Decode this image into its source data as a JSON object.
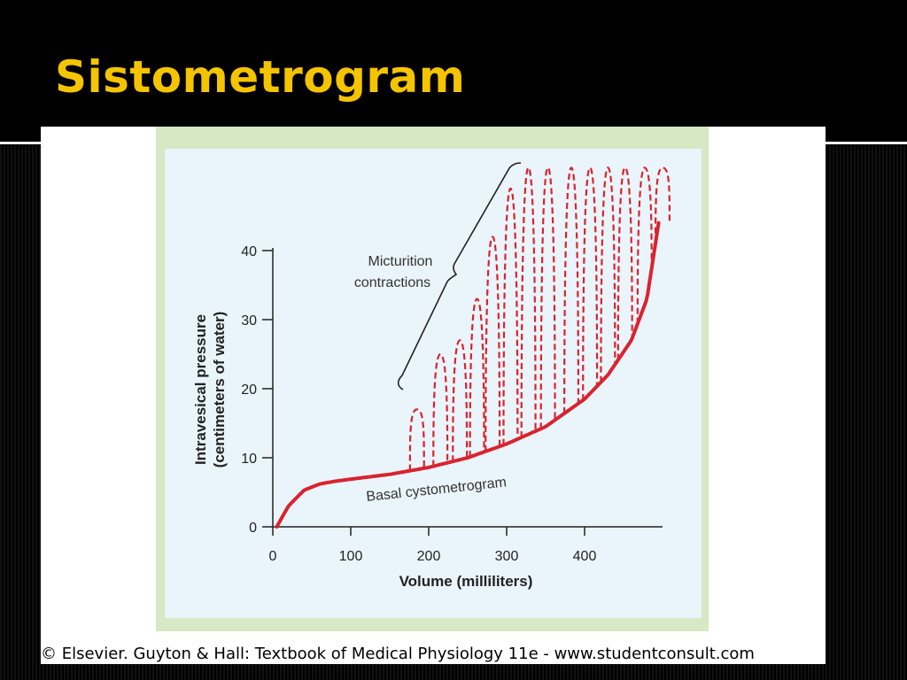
{
  "slide": {
    "title": "Sistometrogram",
    "credit": "© Elsevier. Guyton & Hall: Textbook of Medical Physiology 11e - www.studentconsult.com"
  },
  "colors": {
    "title": "#f5c400",
    "curve": "#d9232e",
    "figure_border": "#d6e8c4",
    "figure_bg": "#eaf4fb"
  },
  "chart_data": {
    "type": "line",
    "xlabel": "Volume (milliliters)",
    "ylabel_line1": "Intravesical pressure",
    "ylabel_line2": "(centimeters of water)",
    "xlim": [
      0,
      500
    ],
    "ylim": [
      0,
      40
    ],
    "x_ticks": [
      0,
      100,
      200,
      300,
      400
    ],
    "y_ticks": [
      0,
      10,
      20,
      30,
      40
    ],
    "grid": false,
    "series": [
      {
        "name": "Basal cystometrogram",
        "style": "solid",
        "x": [
          5,
          20,
          40,
          60,
          80,
          100,
          150,
          200,
          250,
          300,
          350,
          400,
          430,
          460,
          480,
          495
        ],
        "y": [
          0,
          3,
          5.3,
          6.2,
          6.6,
          6.9,
          7.6,
          8.6,
          10,
          12,
          14.5,
          18.5,
          22,
          27,
          33,
          44
        ]
      },
      {
        "name": "Micturition contractions",
        "style": "dashed",
        "peaks": [
          {
            "x": 185,
            "y": 17
          },
          {
            "x": 215,
            "y": 25
          },
          {
            "x": 240,
            "y": 27
          },
          {
            "x": 262,
            "y": 33
          },
          {
            "x": 282,
            "y": 42
          },
          {
            "x": 305,
            "y": 49
          },
          {
            "x": 328,
            "y": 52
          },
          {
            "x": 353,
            "y": 52
          },
          {
            "x": 383,
            "y": 52
          },
          {
            "x": 407,
            "y": 52
          },
          {
            "x": 430,
            "y": 52
          },
          {
            "x": 452,
            "y": 52
          },
          {
            "x": 477,
            "y": 52
          },
          {
            "x": 500,
            "y": 52
          }
        ]
      }
    ],
    "annotations": [
      "Micturition\ncontractions",
      "Basal cystometrogram"
    ]
  }
}
